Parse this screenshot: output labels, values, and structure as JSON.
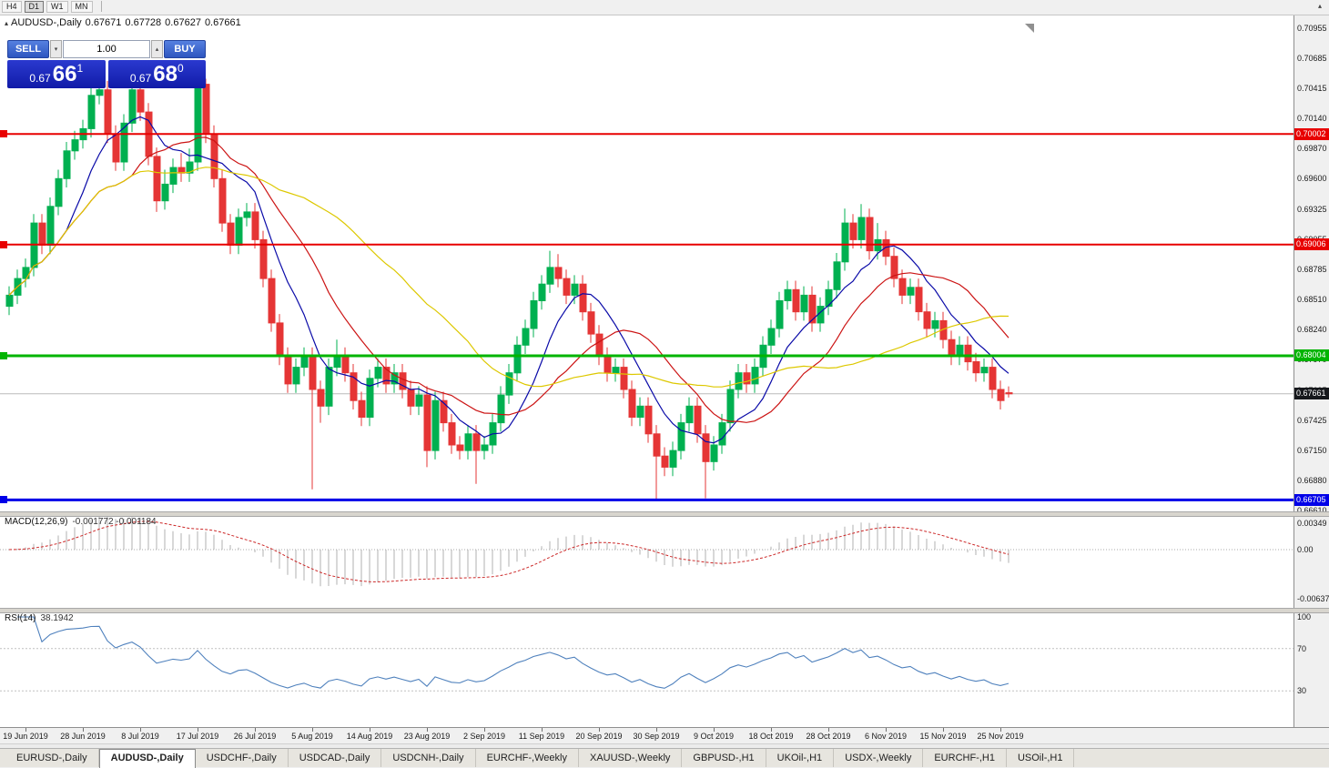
{
  "toolbar": {
    "timeframes": [
      {
        "label": "H4",
        "active": false
      },
      {
        "label": "D1",
        "active": true
      },
      {
        "label": "W1",
        "active": false
      },
      {
        "label": "MN",
        "active": false
      }
    ],
    "overflow_icon": "▴"
  },
  "chart_header": {
    "collapse_icon": "▴",
    "symbol": "AUDUSD-,Daily",
    "open": "0.67671",
    "high": "0.67728",
    "low": "0.67627",
    "close": "0.67661"
  },
  "trade_panel": {
    "sell_label": "SELL",
    "buy_label": "BUY",
    "volume": "1.00",
    "spin_down_icon": "▾",
    "spin_up_icon": "▴",
    "sell_price": {
      "prefix": "0.67",
      "big": "66",
      "sup": "1"
    },
    "buy_price": {
      "prefix": "0.67",
      "big": "68",
      "sup": "0"
    }
  },
  "chart_data": {
    "type": "candlestick",
    "symbol": "AUDUSD",
    "timeframe": "Daily",
    "up_color": "#00b050",
    "down_color": "#e53535",
    "y_axis": {
      "top_price": 0.70955,
      "bottom_price": 0.6661,
      "ticks": [
        "0.70955",
        "0.70685",
        "0.70415",
        "0.70140",
        "0.69870",
        "0.69600",
        "0.69325",
        "0.69055",
        "0.68785",
        "0.68510",
        "0.68240",
        "0.67970",
        "0.67695",
        "0.67425",
        "0.67150",
        "0.66880",
        "0.66610"
      ]
    },
    "x_axis": {
      "first_index": 2,
      "index_step": 7,
      "labels": [
        "19 Jun 2019",
        "28 Jun 2019",
        "8 Jul 2019",
        "17 Jul 2019",
        "26 Jul 2019",
        "5 Aug 2019",
        "14 Aug 2019",
        "23 Aug 2019",
        "2 Sep 2019",
        "11 Sep 2019",
        "20 Sep 2019",
        "30 Sep 2019",
        "9 Oct 2019",
        "18 Oct 2019",
        "28 Oct 2019",
        "6 Nov 2019",
        "15 Nov 2019",
        "25 Nov 2019"
      ]
    },
    "hlines": [
      {
        "price": 0.70002,
        "label": "0.70002",
        "color": "#e80000",
        "width": 2
      },
      {
        "price": 0.69006,
        "label": "0.69006",
        "color": "#e80000",
        "width": 2
      },
      {
        "price": 0.68004,
        "label": "0.68004",
        "color": "#00b400",
        "width": 3
      },
      {
        "price": 0.66705,
        "label": "0.66705",
        "color": "#0000e8",
        "width": 3
      }
    ],
    "current_price": {
      "price": 0.67661,
      "label": "0.67661",
      "badge_color": "#16181c",
      "line_color": "#bcbcbc"
    },
    "moving_averages": [
      {
        "period": 8,
        "color": "#0a0aa8"
      },
      {
        "period": 16,
        "color": "#cc1414"
      },
      {
        "period": 34,
        "color": "#ddc800"
      }
    ],
    "candles": [
      [
        0.6845,
        0.6863,
        0.6837,
        0.6855
      ],
      [
        0.6855,
        0.6878,
        0.6847,
        0.687
      ],
      [
        0.687,
        0.6888,
        0.6862,
        0.688
      ],
      [
        0.688,
        0.6928,
        0.6872,
        0.692
      ],
      [
        0.692,
        0.6928,
        0.6892,
        0.69
      ],
      [
        0.69,
        0.6943,
        0.6892,
        0.6935
      ],
      [
        0.6935,
        0.6968,
        0.6927,
        0.696
      ],
      [
        0.696,
        0.6993,
        0.6952,
        0.6985
      ],
      [
        0.6985,
        0.7003,
        0.6977,
        0.6995
      ],
      [
        0.6995,
        0.7013,
        0.6987,
        0.7005
      ],
      [
        0.7005,
        0.7043,
        0.6997,
        0.7035
      ],
      [
        0.7035,
        0.7048,
        0.7027,
        0.704
      ],
      [
        0.704,
        0.7048,
        0.6992,
        0.7
      ],
      [
        0.7,
        0.7008,
        0.6967,
        0.6975
      ],
      [
        0.6975,
        0.7018,
        0.6967,
        0.701
      ],
      [
        0.701,
        0.7048,
        0.7002,
        0.704
      ],
      [
        0.704,
        0.7048,
        0.7012,
        0.702
      ],
      [
        0.702,
        0.7028,
        0.6972,
        0.698
      ],
      [
        0.698,
        0.6988,
        0.693,
        0.694
      ],
      [
        0.694,
        0.6968,
        0.6932,
        0.6955
      ],
      [
        0.6955,
        0.6978,
        0.6947,
        0.697
      ],
      [
        0.697,
        0.6983,
        0.6957,
        0.6965
      ],
      [
        0.6965,
        0.6987,
        0.6957,
        0.6975
      ],
      [
        0.6975,
        0.70455,
        0.6967,
        0.7045
      ],
      [
        0.7045,
        0.705,
        0.6992,
        0.7
      ],
      [
        0.7,
        0.7008,
        0.6952,
        0.696
      ],
      [
        0.696,
        0.6968,
        0.6912,
        0.692
      ],
      [
        0.692,
        0.6928,
        0.6892,
        0.69
      ],
      [
        0.69,
        0.6933,
        0.6892,
        0.6925
      ],
      [
        0.6925,
        0.6938,
        0.6917,
        0.693
      ],
      [
        0.693,
        0.6938,
        0.6897,
        0.6905
      ],
      [
        0.6905,
        0.6913,
        0.6862,
        0.687
      ],
      [
        0.687,
        0.6878,
        0.6822,
        0.683
      ],
      [
        0.683,
        0.6838,
        0.6792,
        0.68
      ],
      [
        0.68,
        0.6808,
        0.6767,
        0.6775
      ],
      [
        0.6775,
        0.6798,
        0.6767,
        0.679
      ],
      [
        0.679,
        0.6808,
        0.6782,
        0.68
      ],
      [
        0.68,
        0.6808,
        0.668,
        0.677
      ],
      [
        0.677,
        0.6778,
        0.674,
        0.6755
      ],
      [
        0.6755,
        0.6798,
        0.6747,
        0.679
      ],
      [
        0.679,
        0.6815,
        0.6782,
        0.68
      ],
      [
        0.68,
        0.6808,
        0.6777,
        0.6785
      ],
      [
        0.6785,
        0.6793,
        0.6752,
        0.676
      ],
      [
        0.676,
        0.6768,
        0.6737,
        0.6745
      ],
      [
        0.6745,
        0.6788,
        0.6737,
        0.678
      ],
      [
        0.678,
        0.6798,
        0.6772,
        0.679
      ],
      [
        0.679,
        0.6798,
        0.6767,
        0.6775
      ],
      [
        0.6775,
        0.6793,
        0.6767,
        0.6785
      ],
      [
        0.6785,
        0.6793,
        0.6762,
        0.677
      ],
      [
        0.677,
        0.6778,
        0.6747,
        0.6755
      ],
      [
        0.6755,
        0.6773,
        0.6747,
        0.6765
      ],
      [
        0.6765,
        0.6773,
        0.67,
        0.6715
      ],
      [
        0.6715,
        0.6768,
        0.6707,
        0.676
      ],
      [
        0.676,
        0.6768,
        0.6732,
        0.674
      ],
      [
        0.674,
        0.6748,
        0.6712,
        0.672
      ],
      [
        0.672,
        0.6728,
        0.6707,
        0.6715
      ],
      [
        0.6715,
        0.6738,
        0.6707,
        0.673
      ],
      [
        0.673,
        0.6738,
        0.6685,
        0.6715
      ],
      [
        0.6715,
        0.6728,
        0.6707,
        0.672
      ],
      [
        0.672,
        0.6748,
        0.6712,
        0.674
      ],
      [
        0.674,
        0.6773,
        0.6732,
        0.6765
      ],
      [
        0.6765,
        0.6793,
        0.6757,
        0.6785
      ],
      [
        0.6785,
        0.6818,
        0.6777,
        0.681
      ],
      [
        0.681,
        0.6833,
        0.6802,
        0.6825
      ],
      [
        0.6825,
        0.6858,
        0.6817,
        0.685
      ],
      [
        0.685,
        0.6873,
        0.6842,
        0.6865
      ],
      [
        0.6865,
        0.6895,
        0.6857,
        0.688
      ],
      [
        0.688,
        0.6892,
        0.6862,
        0.687
      ],
      [
        0.687,
        0.6878,
        0.6847,
        0.6855
      ],
      [
        0.6855,
        0.6873,
        0.6847,
        0.6865
      ],
      [
        0.6865,
        0.6873,
        0.6832,
        0.684
      ],
      [
        0.684,
        0.6848,
        0.6812,
        0.682
      ],
      [
        0.682,
        0.6828,
        0.6792,
        0.68
      ],
      [
        0.68,
        0.6808,
        0.6777,
        0.6785
      ],
      [
        0.6785,
        0.6798,
        0.6777,
        0.679
      ],
      [
        0.679,
        0.6798,
        0.6762,
        0.677
      ],
      [
        0.677,
        0.6778,
        0.6737,
        0.6745
      ],
      [
        0.6745,
        0.6763,
        0.6737,
        0.6755
      ],
      [
        0.6755,
        0.6763,
        0.6722,
        0.673
      ],
      [
        0.673,
        0.6738,
        0.667,
        0.671
      ],
      [
        0.671,
        0.6718,
        0.6692,
        0.67
      ],
      [
        0.67,
        0.6723,
        0.6692,
        0.6715
      ],
      [
        0.6715,
        0.6748,
        0.6707,
        0.674
      ],
      [
        0.674,
        0.6763,
        0.6732,
        0.6755
      ],
      [
        0.6755,
        0.6763,
        0.6722,
        0.673
      ],
      [
        0.673,
        0.6738,
        0.6672,
        0.6705
      ],
      [
        0.6705,
        0.6728,
        0.6697,
        0.672
      ],
      [
        0.672,
        0.6748,
        0.6712,
        0.674
      ],
      [
        0.674,
        0.6778,
        0.6732,
        0.677
      ],
      [
        0.677,
        0.6793,
        0.6762,
        0.6785
      ],
      [
        0.6785,
        0.6793,
        0.6767,
        0.6775
      ],
      [
        0.6775,
        0.6798,
        0.6767,
        0.679
      ],
      [
        0.679,
        0.6818,
        0.6782,
        0.681
      ],
      [
        0.681,
        0.6833,
        0.6802,
        0.6825
      ],
      [
        0.6825,
        0.6858,
        0.6817,
        0.685
      ],
      [
        0.685,
        0.6868,
        0.6842,
        0.686
      ],
      [
        0.686,
        0.6868,
        0.6832,
        0.684
      ],
      [
        0.684,
        0.6863,
        0.6832,
        0.6855
      ],
      [
        0.6855,
        0.6863,
        0.6822,
        0.683
      ],
      [
        0.683,
        0.6853,
        0.6822,
        0.6845
      ],
      [
        0.6845,
        0.6868,
        0.6837,
        0.686
      ],
      [
        0.686,
        0.6893,
        0.6852,
        0.6885
      ],
      [
        0.6885,
        0.6933,
        0.6877,
        0.692
      ],
      [
        0.692,
        0.6928,
        0.6897,
        0.6905
      ],
      [
        0.6905,
        0.6937,
        0.6897,
        0.6925
      ],
      [
        0.6925,
        0.6933,
        0.6887,
        0.6895
      ],
      [
        0.6895,
        0.692,
        0.6887,
        0.6905
      ],
      [
        0.6905,
        0.6913,
        0.6882,
        0.689
      ],
      [
        0.689,
        0.6898,
        0.6862,
        0.687
      ],
      [
        0.687,
        0.6878,
        0.6847,
        0.6855
      ],
      [
        0.6855,
        0.687,
        0.6847,
        0.6862
      ],
      [
        0.6862,
        0.687,
        0.6832,
        0.684
      ],
      [
        0.684,
        0.6848,
        0.6817,
        0.6825
      ],
      [
        0.6825,
        0.684,
        0.6817,
        0.6832
      ],
      [
        0.6832,
        0.684,
        0.6807,
        0.6815
      ],
      [
        0.6815,
        0.6823,
        0.6792,
        0.68
      ],
      [
        0.68,
        0.6818,
        0.6792,
        0.681
      ],
      [
        0.681,
        0.6818,
        0.6787,
        0.6795
      ],
      [
        0.6795,
        0.6803,
        0.6777,
        0.6785
      ],
      [
        0.6785,
        0.6798,
        0.6777,
        0.679
      ],
      [
        0.679,
        0.6798,
        0.6762,
        0.677
      ],
      [
        0.677,
        0.6778,
        0.6752,
        0.676
      ],
      [
        0.67671,
        0.67728,
        0.67627,
        0.67661
      ]
    ],
    "macd": {
      "title": "MACD(12,26,9)",
      "values_text": "-0.001772 -0.001184",
      "fast": 12,
      "slow": 26,
      "signal": 9,
      "histogram_color": "#b0b0b0",
      "signal_color": "#cc2828",
      "axis": [
        {
          "label": "0.00349",
          "value": 0.00349
        },
        {
          "label": "0.00",
          "value": 0
        },
        {
          "label": "-0.00637",
          "value": -0.00637
        }
      ]
    },
    "rsi": {
      "title": "RSI(14)",
      "value_text": "38.1942",
      "period": 14,
      "color": "#4f81bd",
      "levels": [
        70,
        30
      ],
      "axis": [
        {
          "label": "100",
          "value": 100
        },
        {
          "label": "70",
          "value": 70
        },
        {
          "label": "30",
          "value": 30
        }
      ]
    }
  },
  "tabs": [
    {
      "label": "EURUSD-,Daily",
      "active": false
    },
    {
      "label": "AUDUSD-,Daily",
      "active": true
    },
    {
      "label": "USDCHF-,Daily",
      "active": false
    },
    {
      "label": "USDCAD-,Daily",
      "active": false
    },
    {
      "label": "USDCNH-,Daily",
      "active": false
    },
    {
      "label": "EURCHF-,Weekly",
      "active": false
    },
    {
      "label": "XAUUSD-,Weekly",
      "active": false
    },
    {
      "label": "GBPUSD-,H1",
      "active": false
    },
    {
      "label": "UKOil-,H1",
      "active": false
    },
    {
      "label": "USDX-,Weekly",
      "active": false
    },
    {
      "label": "EURCHF-,H1",
      "active": false
    },
    {
      "label": "USOil-,H1",
      "active": false
    }
  ]
}
